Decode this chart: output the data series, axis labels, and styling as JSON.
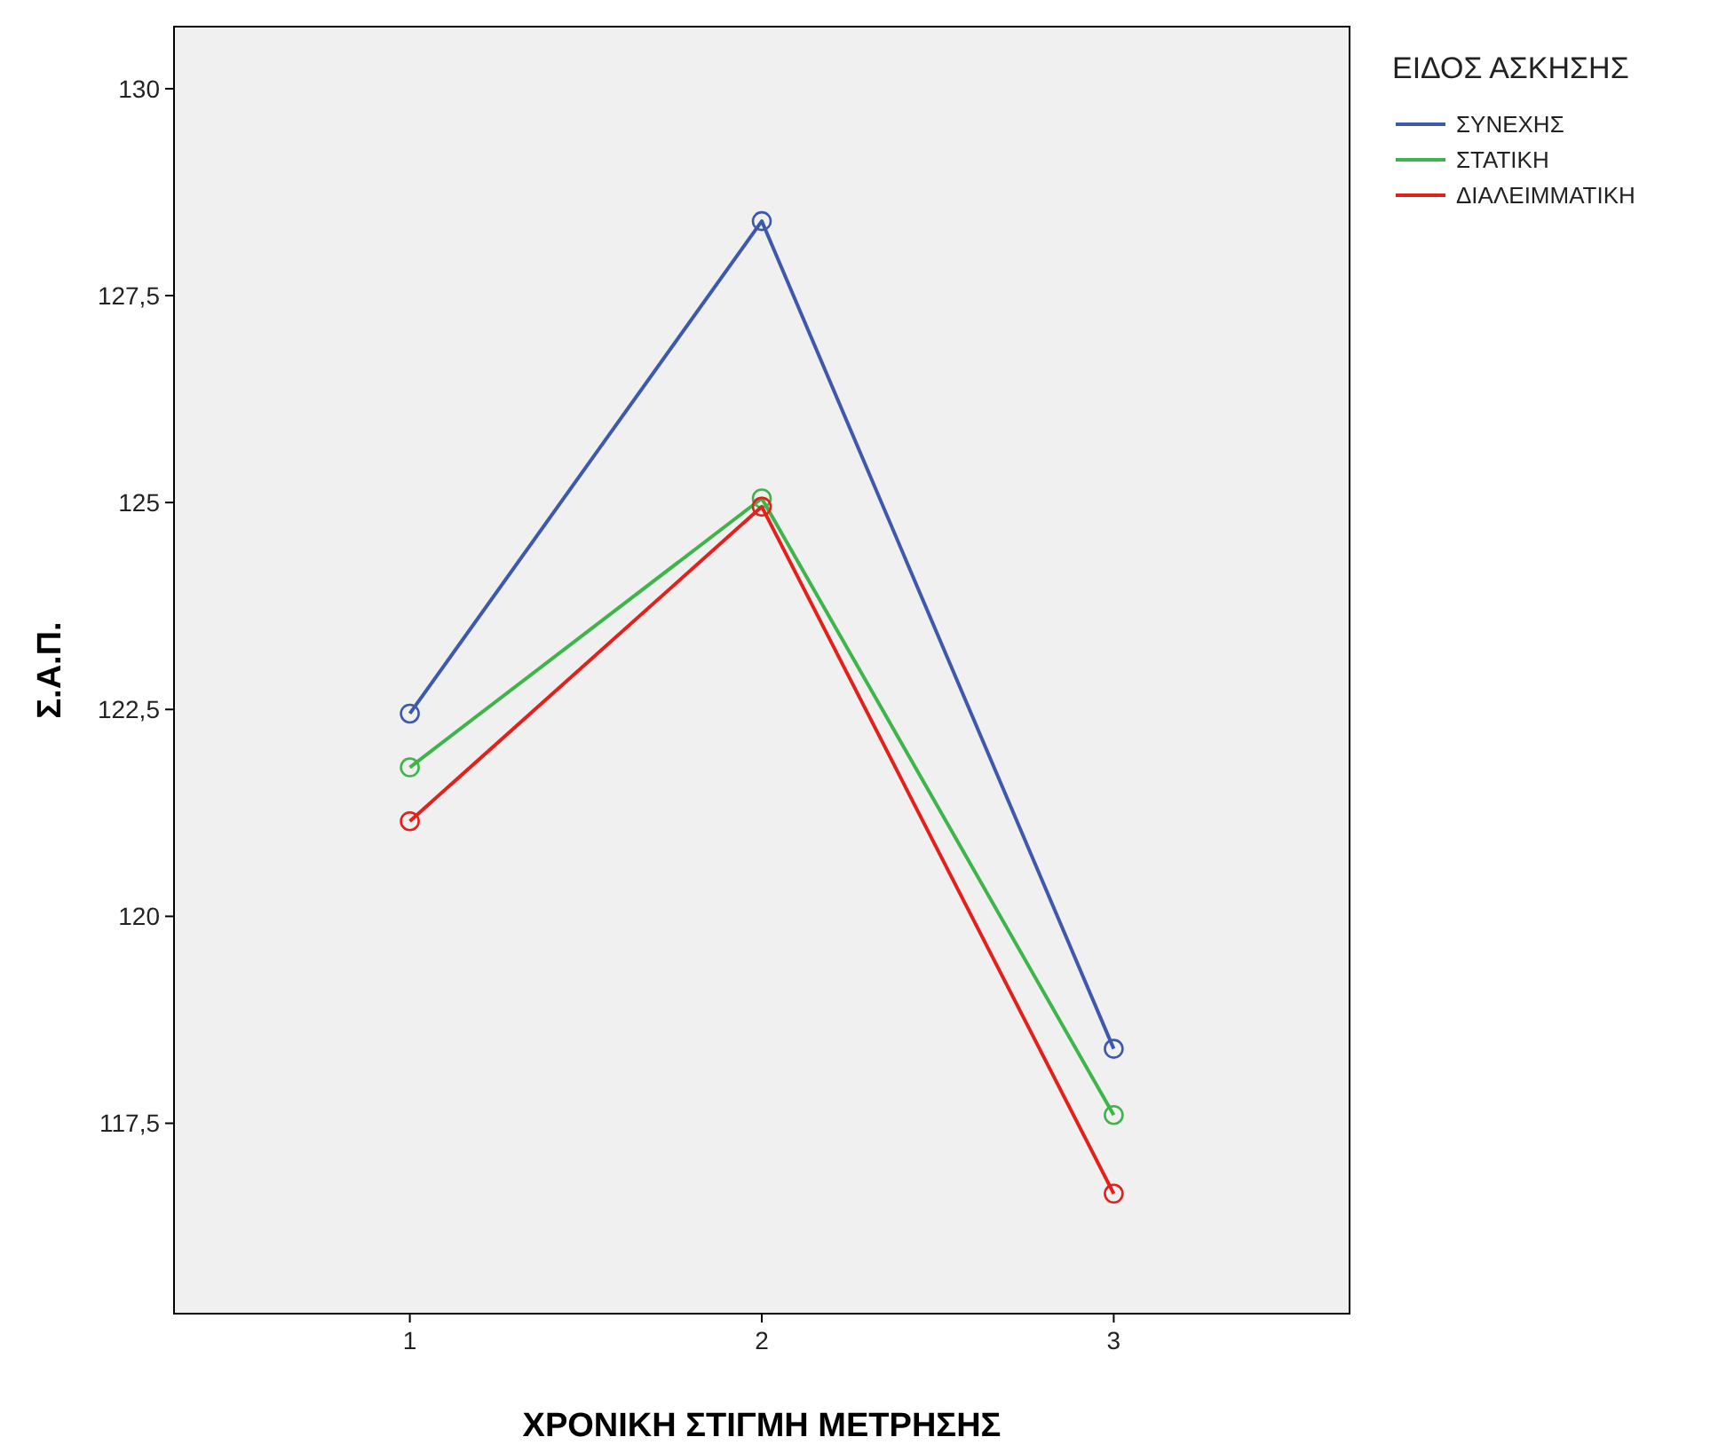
{
  "chart_data": {
    "type": "line",
    "xlabel": "ΧΡΟΝΙΚΗ ΣΤΙΓΜΗ ΜΕΤΡΗΣΗΣ",
    "ylabel": "Σ.Α.Π.",
    "legend_title": "ΕΙΔΟΣ ΑΣΚΗΣΗΣ",
    "categories": [
      "1",
      "2",
      "3"
    ],
    "series": [
      {
        "name": "ΣΥΝΕΧΗΣ",
        "color": "#3e58ac",
        "values": [
          122.45,
          128.4,
          118.4
        ]
      },
      {
        "name": "ΣΤΑΤΙΚΗ",
        "color": "#3fb44a",
        "values": [
          121.8,
          125.05,
          117.6
        ]
      },
      {
        "name": "ΔΙΑΛΕΙΜΜΑΤΙΚΗ",
        "color": "#e2211c",
        "values": [
          121.15,
          124.95,
          116.65
        ]
      }
    ],
    "ylim": [
      115.2,
      130.75
    ],
    "yticks": [
      {
        "value": 117.5,
        "label": "117,5"
      },
      120,
      {
        "value": 122.5,
        "label": "122,5"
      },
      125,
      {
        "value": 127.5,
        "label": "127,5"
      },
      130
    ],
    "marker": "circle",
    "line_style": "solid",
    "legend": "right",
    "grid": false
  }
}
